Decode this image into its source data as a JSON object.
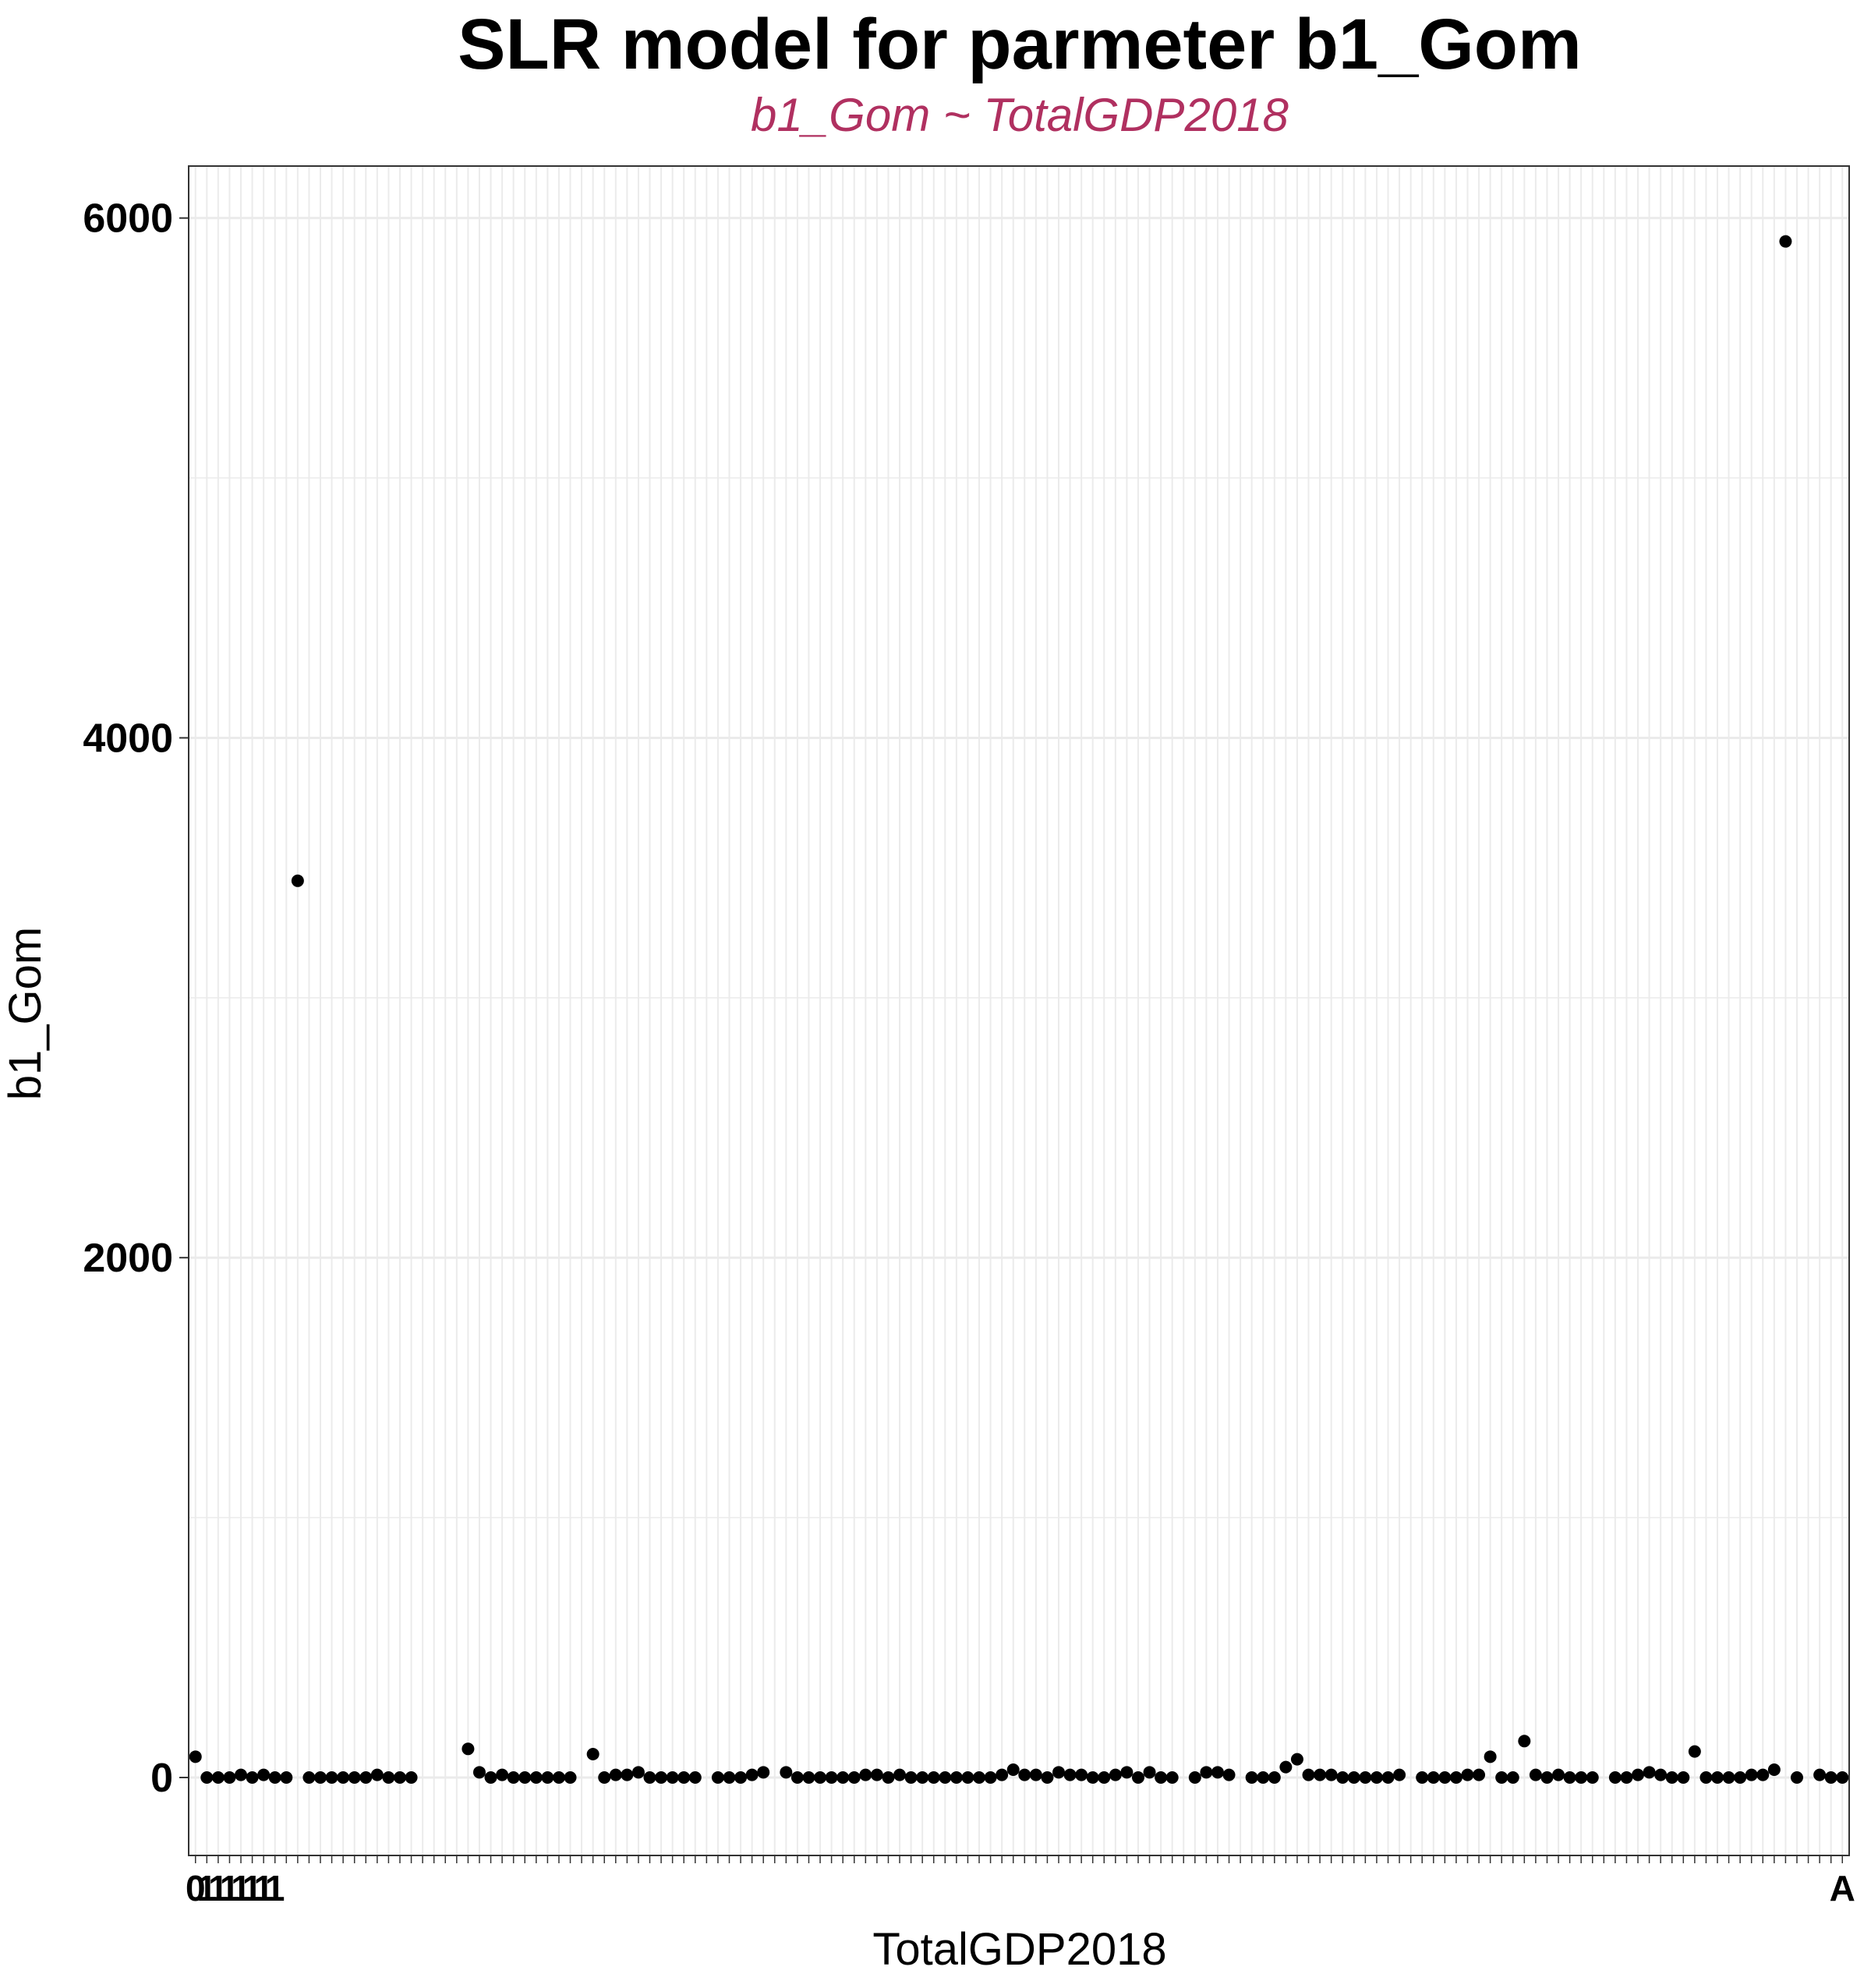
{
  "colors": {
    "subtitle": "#B03060",
    "points": "#000000",
    "grid": "#EBEBEB",
    "panel_border": "#333333"
  },
  "chart_data": {
    "type": "scatter",
    "title": "SLR model for parmeter b1_Gom",
    "subtitle": "b1_Gom ~ TotalGDP2018",
    "xlabel": "TotalGDP2018",
    "ylabel": "b1_Gom",
    "ylim": [
      -300,
      6200
    ],
    "yticks": [
      0,
      2000,
      4000,
      6000
    ],
    "grid": true,
    "x_is_categorical": true,
    "x_category_count": 146,
    "x_tick_labels_visible": [
      "0",
      "1",
      "1",
      "1",
      "1",
      "1",
      "1",
      "1",
      "A"
    ],
    "x_tick_labels_note_overlapping": true,
    "points": [
      [
        1,
        80
      ],
      [
        2,
        0
      ],
      [
        3,
        0
      ],
      [
        4,
        0
      ],
      [
        5,
        10
      ],
      [
        6,
        0
      ],
      [
        7,
        10
      ],
      [
        8,
        0
      ],
      [
        9,
        0
      ],
      [
        10,
        3450
      ],
      [
        11,
        0
      ],
      [
        12,
        0
      ],
      [
        13,
        0
      ],
      [
        14,
        0
      ],
      [
        15,
        0
      ],
      [
        16,
        0
      ],
      [
        17,
        10
      ],
      [
        18,
        0
      ],
      [
        19,
        0
      ],
      [
        20,
        0
      ],
      [
        25,
        110
      ],
      [
        26,
        20
      ],
      [
        27,
        0
      ],
      [
        28,
        10
      ],
      [
        29,
        0
      ],
      [
        30,
        0
      ],
      [
        31,
        0
      ],
      [
        32,
        0
      ],
      [
        33,
        0
      ],
      [
        34,
        0
      ],
      [
        36,
        90
      ],
      [
        37,
        0
      ],
      [
        38,
        10
      ],
      [
        39,
        10
      ],
      [
        40,
        20
      ],
      [
        41,
        0
      ],
      [
        42,
        0
      ],
      [
        43,
        0
      ],
      [
        44,
        0
      ],
      [
        45,
        0
      ],
      [
        47,
        0
      ],
      [
        48,
        0
      ],
      [
        49,
        0
      ],
      [
        50,
        10
      ],
      [
        51,
        20
      ],
      [
        53,
        20
      ],
      [
        54,
        0
      ],
      [
        55,
        0
      ],
      [
        56,
        0
      ],
      [
        57,
        0
      ],
      [
        58,
        0
      ],
      [
        59,
        0
      ],
      [
        60,
        10
      ],
      [
        61,
        10
      ],
      [
        62,
        0
      ],
      [
        63,
        10
      ],
      [
        64,
        0
      ],
      [
        65,
        0
      ],
      [
        66,
        0
      ],
      [
        67,
        0
      ],
      [
        68,
        0
      ],
      [
        69,
        0
      ],
      [
        70,
        0
      ],
      [
        71,
        0
      ],
      [
        72,
        10
      ],
      [
        73,
        30
      ],
      [
        74,
        10
      ],
      [
        75,
        10
      ],
      [
        76,
        0
      ],
      [
        77,
        20
      ],
      [
        78,
        10
      ],
      [
        79,
        10
      ],
      [
        80,
        0
      ],
      [
        81,
        0
      ],
      [
        82,
        10
      ],
      [
        83,
        20
      ],
      [
        84,
        0
      ],
      [
        85,
        20
      ],
      [
        86,
        0
      ],
      [
        87,
        0
      ],
      [
        89,
        0
      ],
      [
        90,
        20
      ],
      [
        91,
        20
      ],
      [
        92,
        10
      ],
      [
        94,
        0
      ],
      [
        95,
        0
      ],
      [
        96,
        0
      ],
      [
        97,
        40
      ],
      [
        98,
        70
      ],
      [
        99,
        10
      ],
      [
        100,
        10
      ],
      [
        101,
        10
      ],
      [
        102,
        0
      ],
      [
        103,
        0
      ],
      [
        104,
        0
      ],
      [
        105,
        0
      ],
      [
        106,
        0
      ],
      [
        107,
        10
      ],
      [
        109,
        0
      ],
      [
        110,
        0
      ],
      [
        111,
        0
      ],
      [
        112,
        0
      ],
      [
        113,
        10
      ],
      [
        114,
        10
      ],
      [
        115,
        80
      ],
      [
        116,
        0
      ],
      [
        117,
        0
      ],
      [
        118,
        140
      ],
      [
        119,
        10
      ],
      [
        120,
        0
      ],
      [
        121,
        10
      ],
      [
        122,
        0
      ],
      [
        123,
        0
      ],
      [
        124,
        0
      ],
      [
        126,
        0
      ],
      [
        127,
        0
      ],
      [
        128,
        10
      ],
      [
        129,
        20
      ],
      [
        130,
        10
      ],
      [
        131,
        0
      ],
      [
        132,
        0
      ],
      [
        133,
        100
      ],
      [
        134,
        0
      ],
      [
        135,
        0
      ],
      [
        136,
        0
      ],
      [
        137,
        0
      ],
      [
        138,
        10
      ],
      [
        139,
        10
      ],
      [
        140,
        30
      ],
      [
        141,
        5910
      ],
      [
        142,
        0
      ],
      [
        144,
        10
      ],
      [
        145,
        0
      ],
      [
        146,
        0
      ]
    ]
  }
}
